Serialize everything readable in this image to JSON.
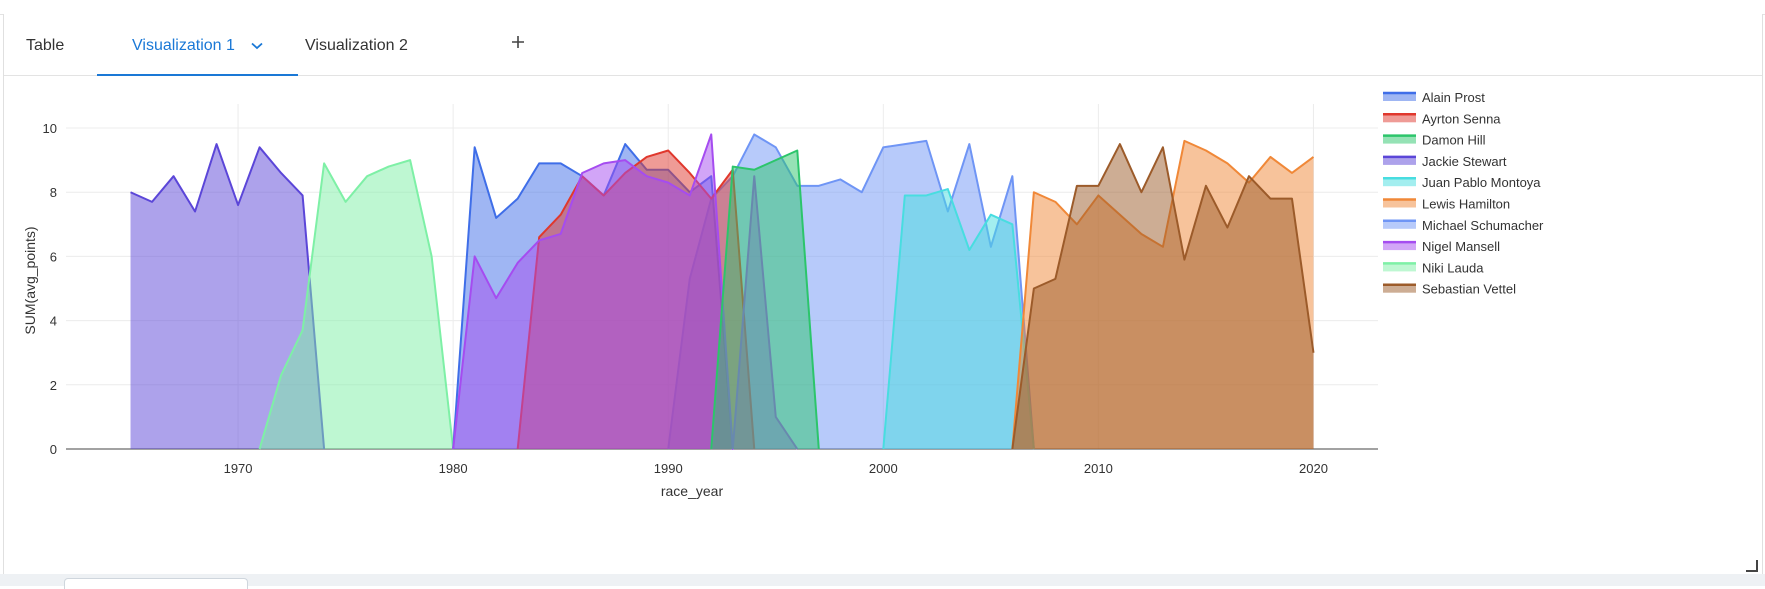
{
  "tabs": [
    {
      "label": "Table"
    },
    {
      "label": "Visualization 1"
    },
    {
      "label": "Visualization 2"
    }
  ],
  "active_tab_index": 1,
  "icons": {
    "chevron": "chevron-down-icon",
    "add": "plus-icon",
    "resize": "resize-handle-icon"
  },
  "chart_data": {
    "type": "area",
    "xlabel": "race_year",
    "ylabel": "SUM(avg_points)",
    "xlim": [
      1962,
      2023
    ],
    "ylim": [
      0,
      10.5
    ],
    "x_ticks": [
      1970,
      1980,
      1990,
      2000,
      2010,
      2020
    ],
    "y_ticks": [
      0,
      2,
      4,
      6,
      8,
      10
    ],
    "grid": true,
    "legend_position": "right",
    "series": [
      {
        "name": "Jackie Stewart",
        "color": "#5b46d8",
        "x": [
          1965,
          1966,
          1967,
          1968,
          1969,
          1970,
          1971,
          1972,
          1973,
          1974
        ],
        "y": [
          8.0,
          7.7,
          8.5,
          7.4,
          9.5,
          7.6,
          9.4,
          8.6,
          7.9,
          0
        ]
      },
      {
        "name": "Niki Lauda",
        "color": "#7ef0a6",
        "x": [
          1971,
          1972,
          1973,
          1974,
          1975,
          1976,
          1977,
          1978,
          1979,
          1980
        ],
        "y": [
          0,
          2.3,
          3.7,
          8.9,
          7.7,
          8.5,
          8.8,
          9.0,
          6.0,
          0
        ]
      },
      {
        "name": "Michael Schumacher",
        "color": "#6f95f5",
        "x": [
          1990,
          1991,
          1992,
          1993,
          1994,
          1995,
          1996,
          1997,
          1998,
          1999,
          2000,
          2001,
          2002,
          2003,
          2004,
          2005,
          2006,
          2007
        ],
        "y": [
          0,
          5.3,
          7.8,
          8.5,
          9.8,
          9.4,
          8.2,
          8.2,
          8.4,
          8.0,
          9.4,
          9.5,
          9.6,
          7.4,
          9.5,
          6.3,
          8.5,
          0
        ]
      },
      {
        "name": "Alain Prost",
        "color": "#3f6ee8",
        "x": [
          1980,
          1981,
          1982,
          1983,
          1984,
          1985,
          1986,
          1987,
          1988,
          1989,
          1990,
          1991,
          1992,
          1993
        ],
        "y": [
          0,
          9.4,
          7.2,
          7.8,
          8.9,
          8.9,
          8.5,
          7.9,
          9.5,
          8.7,
          8.7,
          8.0,
          8.5,
          0
        ]
      },
      {
        "name": "Ayrton Senna",
        "color": "#e0382d",
        "x": [
          1983,
          1984,
          1985,
          1986,
          1987,
          1988,
          1989,
          1990,
          1991,
          1992,
          1993,
          1994
        ],
        "y": [
          0,
          6.6,
          7.3,
          8.5,
          7.9,
          8.6,
          9.1,
          9.3,
          8.6,
          7.8,
          8.7,
          0
        ]
      },
      {
        "name": "Nigel Mansell",
        "color": "#a54cf0",
        "x": [
          1980,
          1981,
          1982,
          1983,
          1984,
          1985,
          1986,
          1987,
          1988,
          1989,
          1990,
          1991,
          1992,
          1993,
          1994,
          1995,
          1996
        ],
        "y": [
          0,
          6.0,
          4.7,
          5.8,
          6.5,
          6.7,
          8.6,
          8.9,
          9.0,
          8.5,
          8.3,
          7.9,
          9.8,
          0,
          8.5,
          1.0,
          0
        ]
      },
      {
        "name": "Damon Hill",
        "color": "#2cc56b",
        "x": [
          1992,
          1993,
          1994,
          1995,
          1996,
          1997
        ],
        "y": [
          0,
          8.8,
          8.7,
          9.0,
          9.3,
          0
        ]
      },
      {
        "name": "Juan Pablo Montoya",
        "color": "#48dde0",
        "x": [
          2000,
          2001,
          2002,
          2003,
          2004,
          2005,
          2006,
          2007
        ],
        "y": [
          0,
          7.9,
          7.9,
          8.1,
          6.2,
          7.3,
          7.0,
          0
        ]
      },
      {
        "name": "Lewis Hamilton",
        "color": "#f08838",
        "x": [
          2006,
          2007,
          2008,
          2009,
          2010,
          2011,
          2012,
          2013,
          2014,
          2015,
          2016,
          2017,
          2018,
          2019,
          2020
        ],
        "y": [
          0,
          8.0,
          7.7,
          7.0,
          7.9,
          7.3,
          6.7,
          6.3,
          9.6,
          9.3,
          8.9,
          8.3,
          9.1,
          8.6,
          9.1
        ]
      },
      {
        "name": "Sebastian Vettel",
        "color": "#9c5b2a",
        "x": [
          2006,
          2007,
          2008,
          2009,
          2010,
          2011,
          2012,
          2013,
          2014,
          2015,
          2016,
          2017,
          2018,
          2019,
          2020
        ],
        "y": [
          0,
          5.0,
          5.3,
          8.2,
          8.2,
          9.5,
          8.0,
          9.4,
          5.9,
          8.2,
          6.9,
          8.5,
          7.8,
          7.8,
          3.0
        ]
      }
    ],
    "legend_order": [
      "Alain Prost",
      "Ayrton Senna",
      "Damon Hill",
      "Jackie Stewart",
      "Juan Pablo Montoya",
      "Lewis Hamilton",
      "Michael Schumacher",
      "Nigel Mansell",
      "Niki Lauda",
      "Sebastian Vettel"
    ]
  }
}
